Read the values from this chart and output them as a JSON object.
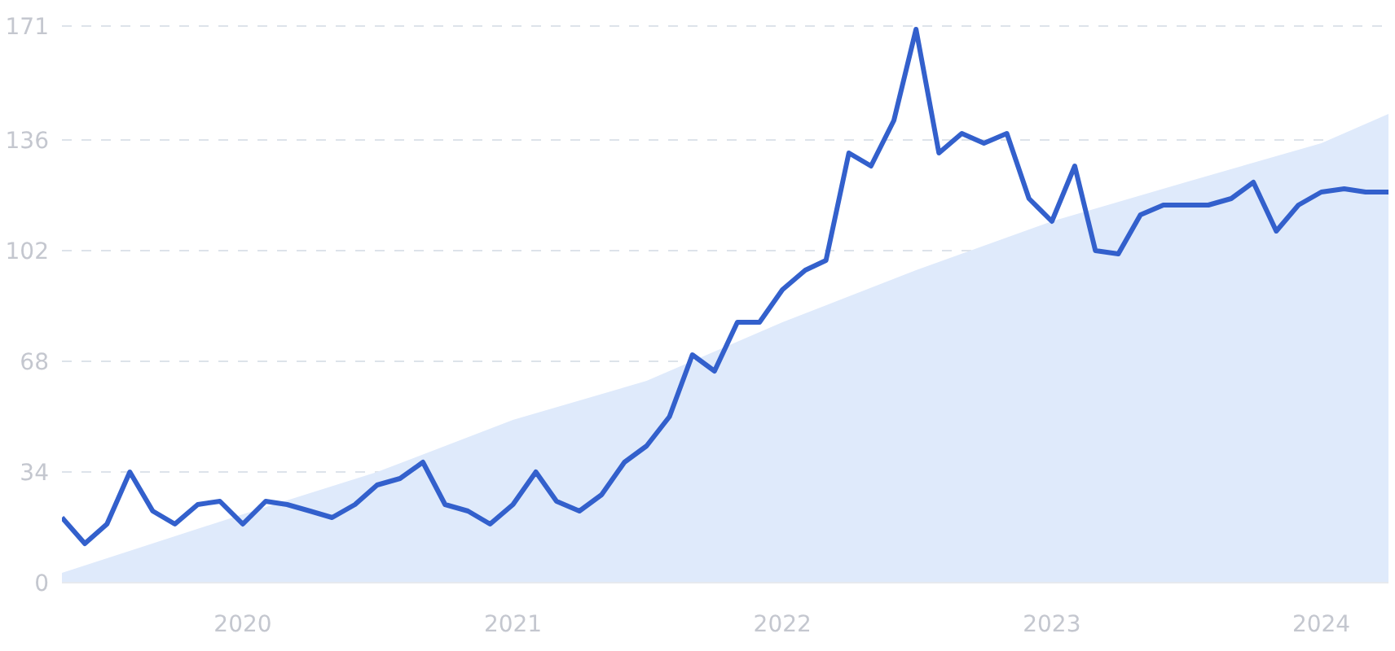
{
  "chart_data": {
    "type": "line",
    "xlim": [
      "2019-05",
      "2024-04"
    ],
    "xticks": [
      "2020",
      "2021",
      "2022",
      "2023",
      "2024"
    ],
    "ylim": [
      0,
      171
    ],
    "yticks": [
      0,
      34,
      68,
      102,
      136,
      171
    ],
    "grid": "y",
    "series": [
      {
        "type": "area",
        "color": "#dfeafb",
        "x": [
          "2019-05",
          "2020-01",
          "2020-07",
          "2021-01",
          "2021-07",
          "2022-01",
          "2022-07",
          "2023-01",
          "2023-07",
          "2024-01",
          "2024-04"
        ],
        "values": [
          3,
          21,
          34,
          50,
          62,
          80,
          96,
          111,
          123,
          135,
          144
        ]
      },
      {
        "color": "#3360cc",
        "x": [
          "2019-05",
          "2019-06",
          "2019-07",
          "2019-08",
          "2019-09",
          "2019-10",
          "2019-11",
          "2019-12",
          "2020-01",
          "2020-02",
          "2020-03",
          "2020-04",
          "2020-05",
          "2020-06",
          "2020-07",
          "2020-08",
          "2020-09",
          "2020-10",
          "2020-11",
          "2020-12",
          "2021-01",
          "2021-02",
          "2021-03",
          "2021-04",
          "2021-05",
          "2021-06",
          "2021-07",
          "2021-08",
          "2021-09",
          "2021-10",
          "2021-11",
          "2021-12",
          "2022-01",
          "2022-02",
          "2022-03",
          "2022-04",
          "2022-05",
          "2022-06",
          "2022-07",
          "2022-08",
          "2022-09",
          "2022-10",
          "2022-11",
          "2022-12",
          "2023-01",
          "2023-02",
          "2023-03",
          "2023-04",
          "2023-05",
          "2023-06",
          "2023-07",
          "2023-08",
          "2023-09",
          "2023-10",
          "2023-11",
          "2023-12",
          "2024-01",
          "2024-02",
          "2024-03",
          "2024-04"
        ],
        "values": [
          20,
          12,
          18,
          34,
          22,
          18,
          24,
          25,
          18,
          25,
          24,
          22,
          20,
          24,
          30,
          32,
          37,
          24,
          22,
          18,
          24,
          34,
          25,
          22,
          27,
          37,
          42,
          51,
          70,
          65,
          80,
          80,
          90,
          96,
          99,
          132,
          128,
          142,
          170,
          132,
          138,
          135,
          138,
          118,
          111,
          128,
          102,
          101,
          113,
          116,
          116,
          116,
          118,
          123,
          108,
          116,
          120,
          121,
          120,
          120
        ]
      }
    ]
  }
}
